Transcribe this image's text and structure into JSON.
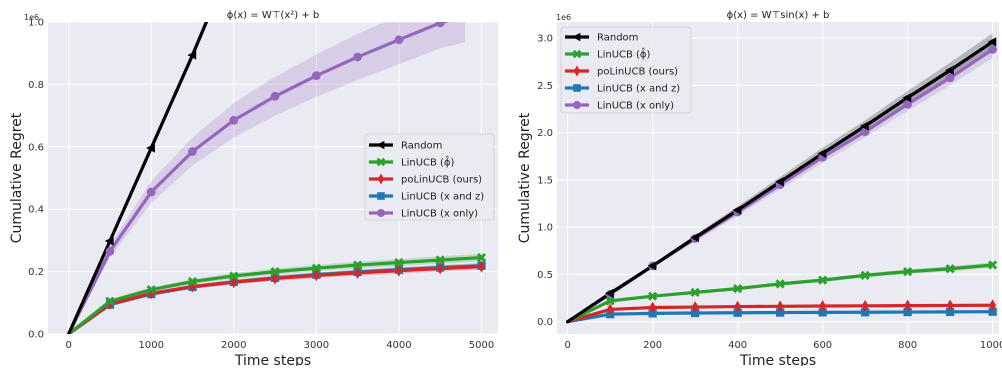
{
  "chart_data": [
    {
      "type": "line",
      "title": "ϕ(x) = W⊤(x²) + b",
      "xlabel": "Time steps",
      "ylabel": "Cumulative Regret",
      "y_multiplier": "1e6",
      "xlim": [
        -250,
        5200
      ],
      "ylim": [
        0,
        1.0
      ],
      "xticks": [
        "0",
        "1000",
        "2000",
        "3000",
        "4000",
        "5000"
      ],
      "yticks": [
        "0.0",
        "0.2",
        "0.4",
        "0.6",
        "0.8",
        "1.0"
      ],
      "grid": true,
      "legend_position": "center-right",
      "series": [
        {
          "name": "Random",
          "color": "#000000",
          "marker": "left-triangle",
          "x": [
            0,
            500,
            1000,
            1500,
            1700
          ],
          "y": [
            0,
            0.298,
            0.596,
            0.894,
            1.02
          ],
          "band": [
            0,
            0.004,
            0.008,
            0.012,
            0.014
          ]
        },
        {
          "name": "LinUCB (ϕ̂)",
          "color": "#2ca02c",
          "marker": "x",
          "x": [
            0,
            500,
            1000,
            1500,
            2000,
            2500,
            3000,
            3500,
            4000,
            4500,
            5000
          ],
          "y": [
            0,
            0.105,
            0.142,
            0.168,
            0.186,
            0.2,
            0.211,
            0.221,
            0.229,
            0.237,
            0.245
          ],
          "band": [
            0,
            0.006,
            0.007,
            0.008,
            0.009,
            0.01,
            0.01,
            0.011,
            0.011,
            0.012,
            0.012
          ]
        },
        {
          "name": "poLinUCB (ours)",
          "color": "#d62728",
          "marker": "diamond",
          "x": [
            0,
            500,
            1000,
            1500,
            2000,
            2500,
            3000,
            3500,
            4000,
            4500,
            5000
          ],
          "y": [
            0,
            0.096,
            0.13,
            0.152,
            0.166,
            0.178,
            0.188,
            0.196,
            0.203,
            0.21,
            0.216
          ],
          "band": [
            0,
            0.005,
            0.006,
            0.007,
            0.008,
            0.008,
            0.009,
            0.009,
            0.01,
            0.01,
            0.01
          ]
        },
        {
          "name": "LinUCB (x and z)",
          "color": "#1f77b4",
          "marker": "square",
          "x": [
            0,
            500,
            1000,
            1500,
            2000,
            2500,
            3000,
            3500,
            4000,
            4500,
            5000
          ],
          "y": [
            0,
            0.094,
            0.128,
            0.151,
            0.167,
            0.18,
            0.19,
            0.199,
            0.206,
            0.213,
            0.219
          ],
          "band": [
            0,
            0.004,
            0.005,
            0.006,
            0.006,
            0.007,
            0.007,
            0.007,
            0.008,
            0.008,
            0.008
          ]
        },
        {
          "name": "LinUCB (x only)",
          "color": "#9467bd",
          "marker": "circle",
          "x": [
            0,
            500,
            1000,
            1500,
            2000,
            2500,
            3000,
            3500,
            4000,
            4500,
            4800
          ],
          "y": [
            0,
            0.265,
            0.455,
            0.585,
            0.685,
            0.762,
            0.828,
            0.888,
            0.943,
            0.997,
            1.02
          ],
          "band": [
            0,
            0.02,
            0.035,
            0.045,
            0.055,
            0.062,
            0.068,
            0.074,
            0.078,
            0.082,
            0.085
          ]
        }
      ]
    },
    {
      "type": "line",
      "title": "ϕ(x) = W⊤sin(x) + b",
      "xlabel": "Time steps",
      "ylabel": "Cumulative Regret",
      "y_multiplier": "1e6",
      "xlim": [
        -25,
        1015
      ],
      "ylim": [
        -0.13,
        3.17
      ],
      "xticks": [
        "0",
        "200",
        "400",
        "600",
        "800",
        "1000"
      ],
      "yticks": [
        "0.0",
        "0.5",
        "1.0",
        "1.5",
        "2.0",
        "2.5",
        "3.0"
      ],
      "grid": true,
      "legend_position": "top-left",
      "series": [
        {
          "name": "Random",
          "color": "#000000",
          "marker": "left-triangle",
          "x": [
            0,
            100,
            200,
            300,
            400,
            500,
            600,
            700,
            800,
            900,
            1000
          ],
          "y": [
            0,
            0.3,
            0.59,
            0.89,
            1.18,
            1.48,
            1.78,
            2.07,
            2.37,
            2.66,
            2.96
          ],
          "band": [
            0,
            0.01,
            0.02,
            0.03,
            0.04,
            0.05,
            0.06,
            0.06,
            0.07,
            0.08,
            0.09
          ]
        },
        {
          "name": "LinUCB (ϕ̂)",
          "color": "#2ca02c",
          "marker": "x",
          "x": [
            0,
            100,
            200,
            300,
            400,
            500,
            600,
            700,
            800,
            900,
            1000
          ],
          "y": [
            0,
            0.22,
            0.27,
            0.31,
            0.35,
            0.4,
            0.44,
            0.49,
            0.53,
            0.56,
            0.6
          ],
          "band": [
            0,
            0.01,
            0.012,
            0.014,
            0.016,
            0.018,
            0.02,
            0.022,
            0.024,
            0.026,
            0.028
          ]
        },
        {
          "name": "poLinUCB (ours)",
          "color": "#d62728",
          "marker": "diamond",
          "x": [
            0,
            100,
            200,
            300,
            400,
            500,
            600,
            700,
            800,
            900,
            1000
          ],
          "y": [
            0,
            0.13,
            0.15,
            0.155,
            0.16,
            0.163,
            0.166,
            0.168,
            0.17,
            0.172,
            0.174
          ],
          "band": [
            0,
            0.006,
            0.007,
            0.008,
            0.008,
            0.009,
            0.009,
            0.01,
            0.01,
            0.01,
            0.01
          ]
        },
        {
          "name": "LinUCB (x and z)",
          "color": "#1f77b4",
          "marker": "square",
          "x": [
            0,
            100,
            200,
            300,
            400,
            500,
            600,
            700,
            800,
            900,
            1000
          ],
          "y": [
            0,
            0.08,
            0.088,
            0.092,
            0.095,
            0.097,
            0.099,
            0.1,
            0.102,
            0.104,
            0.106
          ],
          "band": [
            0,
            0.004,
            0.004,
            0.005,
            0.005,
            0.005,
            0.005,
            0.006,
            0.006,
            0.006,
            0.006
          ]
        },
        {
          "name": "LinUCB (x only)",
          "color": "#9467bd",
          "marker": "circle",
          "x": [
            0,
            100,
            200,
            300,
            400,
            500,
            600,
            700,
            800,
            900,
            1000
          ],
          "y": [
            0,
            0.29,
            0.59,
            0.88,
            1.16,
            1.45,
            1.74,
            2.01,
            2.3,
            2.58,
            2.88
          ],
          "band": [
            0,
            0.01,
            0.02,
            0.03,
            0.04,
            0.05,
            0.06,
            0.06,
            0.07,
            0.08,
            0.09
          ]
        }
      ]
    }
  ]
}
